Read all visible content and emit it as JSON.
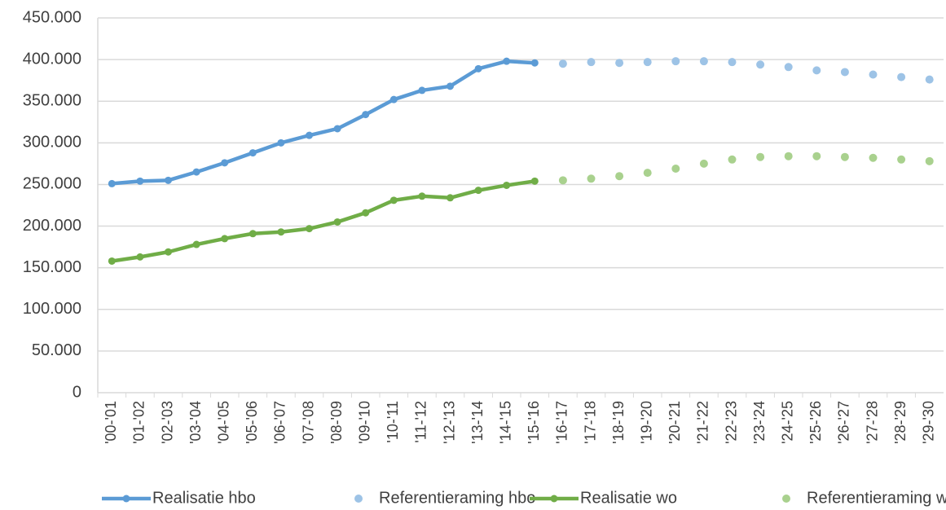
{
  "chart_data": {
    "type": "line",
    "categories": [
      "'00-'01",
      "'01-'02",
      "'02-'03",
      "'03-'04",
      "'04-'05",
      "'05-'06",
      "'06-'07",
      "'07-'08",
      "'08-'09",
      "'09-'10",
      "'10-'11",
      "'11-'12",
      "'12-'13",
      "'13-'14",
      "'14-'15",
      "'15-'16",
      "'16-'17",
      "'17-'18",
      "'18-'19",
      "'19-'20",
      "'20-'21",
      "'21-'22",
      "'22-'23",
      "'23-'24",
      "'24-'25",
      "'25-'26",
      "'26-'27",
      "'27-'28",
      "'28-'29",
      "'29-'30"
    ],
    "series": [
      {
        "name": "Realisatie hbo",
        "color": "#5b9bd5",
        "mode": "line",
        "values": [
          251000,
          254000,
          255000,
          265000,
          276000,
          288000,
          300000,
          309000,
          317000,
          334000,
          352000,
          363000,
          368000,
          389000,
          398000,
          396000,
          null,
          null,
          null,
          null,
          null,
          null,
          null,
          null,
          null,
          null,
          null,
          null,
          null,
          null
        ]
      },
      {
        "name": "Referentieraming hbo",
        "color": "#9dc3e6",
        "mode": "markers",
        "values": [
          null,
          null,
          null,
          null,
          null,
          null,
          null,
          null,
          null,
          null,
          null,
          null,
          null,
          null,
          null,
          null,
          395000,
          397000,
          396000,
          397000,
          398000,
          398000,
          397000,
          394000,
          391000,
          387000,
          385000,
          382000,
          379000,
          376000
        ]
      },
      {
        "name": "Realisatie wo",
        "color": "#70ad47",
        "mode": "line",
        "values": [
          158000,
          163000,
          169000,
          178000,
          185000,
          191000,
          193000,
          197000,
          205000,
          216000,
          231000,
          236000,
          234000,
          243000,
          249000,
          254000,
          null,
          null,
          null,
          null,
          null,
          null,
          null,
          null,
          null,
          null,
          null,
          null,
          null,
          null
        ]
      },
      {
        "name": "Referentieraming wo",
        "color": "#a9d18e",
        "mode": "markers",
        "values": [
          null,
          null,
          null,
          null,
          null,
          null,
          null,
          null,
          null,
          null,
          null,
          null,
          null,
          null,
          null,
          null,
          255000,
          257000,
          260000,
          264000,
          269000,
          275000,
          280000,
          283000,
          284000,
          284000,
          283000,
          282000,
          280000,
          278000
        ]
      }
    ],
    "ylim": [
      0,
      450000
    ],
    "yticks": [
      0,
      {
        "value": 50000,
        "label": "50.000"
      },
      {
        "value": 100000,
        "label": "100.000"
      },
      {
        "value": 150000,
        "label": "150.000"
      },
      {
        "value": 200000,
        "label": "200.000"
      },
      {
        "value": 250000,
        "label": "250.000"
      },
      {
        "value": 300000,
        "label": "300.000"
      },
      {
        "value": 350000,
        "label": "350.000"
      },
      {
        "value": 400000,
        "label": "400.000"
      },
      {
        "value": 450000,
        "label": "450.000"
      }
    ],
    "grid": true,
    "legend": "bottom"
  }
}
